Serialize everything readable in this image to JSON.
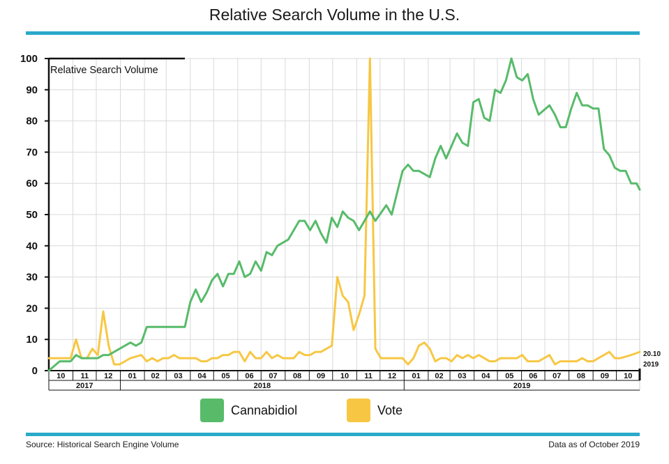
{
  "header": {
    "title": "Relative Search Volume in the U.S."
  },
  "footer": {
    "source": "Source: Historical Search Engine Volume",
    "note": "Data as of October 2019"
  },
  "colors": {
    "rule": "#2aa9c9",
    "cannabidiol": "#57bb6a",
    "vote": "#f7c744",
    "grid": "#d9d9d9"
  },
  "chart_data": {
    "type": "line",
    "ylabel": "Relative Search Volume",
    "ylim": [
      0,
      100
    ],
    "yticks": [
      0,
      10,
      20,
      30,
      40,
      50,
      60,
      70,
      80,
      90,
      100
    ],
    "x_start": "2017-10-01",
    "x_end": "2019-10-31",
    "months": [
      {
        "label": "10",
        "date": "2017-10-01"
      },
      {
        "label": "11",
        "date": "2017-11-01"
      },
      {
        "label": "12",
        "date": "2017-12-01"
      },
      {
        "label": "01",
        "date": "2018-01-01"
      },
      {
        "label": "02",
        "date": "2018-02-01"
      },
      {
        "label": "03",
        "date": "2018-03-01"
      },
      {
        "label": "04",
        "date": "2018-04-01"
      },
      {
        "label": "05",
        "date": "2018-05-01"
      },
      {
        "label": "06",
        "date": "2018-06-01"
      },
      {
        "label": "07",
        "date": "2018-07-01"
      },
      {
        "label": "08",
        "date": "2018-08-01"
      },
      {
        "label": "09",
        "date": "2018-09-01"
      },
      {
        "label": "10",
        "date": "2018-10-01"
      },
      {
        "label": "11",
        "date": "2018-11-01"
      },
      {
        "label": "12",
        "date": "2018-12-01"
      },
      {
        "label": "01",
        "date": "2019-01-01"
      },
      {
        "label": "02",
        "date": "2019-02-01"
      },
      {
        "label": "03",
        "date": "2019-03-01"
      },
      {
        "label": "04",
        "date": "2019-04-01"
      },
      {
        "label": "05",
        "date": "2019-05-01"
      },
      {
        "label": "06",
        "date": "2019-06-01"
      },
      {
        "label": "07",
        "date": "2019-07-01"
      },
      {
        "label": "08",
        "date": "2019-08-01"
      },
      {
        "label": "09",
        "date": "2019-09-01"
      },
      {
        "label": "10",
        "date": "2019-10-01"
      }
    ],
    "years": [
      {
        "label": "2017",
        "start": "2017-10-01",
        "end": "2017-12-31"
      },
      {
        "label": "2018",
        "start": "2018-01-01",
        "end": "2018-12-31"
      },
      {
        "label": "2019",
        "start": "2019-01-01",
        "end": "2019-10-31"
      }
    ],
    "end_label": [
      "20.10",
      "2019"
    ],
    "legend": {
      "placement": "bottom"
    },
    "series": [
      {
        "name": "Cannabidiol",
        "color": "#57bb6a",
        "points": [
          [
            "2017-10-01",
            0
          ],
          [
            "2017-10-15",
            3
          ],
          [
            "2017-10-29",
            3
          ],
          [
            "2017-11-05",
            5
          ],
          [
            "2017-11-12",
            4
          ],
          [
            "2017-11-19",
            4
          ],
          [
            "2017-11-26",
            4
          ],
          [
            "2017-12-03",
            4
          ],
          [
            "2017-12-10",
            5
          ],
          [
            "2017-12-17",
            5
          ],
          [
            "2017-12-31",
            7
          ],
          [
            "2018-01-14",
            9
          ],
          [
            "2018-01-21",
            8
          ],
          [
            "2018-01-28",
            9
          ],
          [
            "2018-02-04",
            14
          ],
          [
            "2018-02-11",
            14
          ],
          [
            "2018-02-25",
            14
          ],
          [
            "2018-03-11",
            14
          ],
          [
            "2018-03-25",
            14
          ],
          [
            "2018-04-01",
            22
          ],
          [
            "2018-04-08",
            26
          ],
          [
            "2018-04-15",
            22
          ],
          [
            "2018-04-22",
            25
          ],
          [
            "2018-04-29",
            29
          ],
          [
            "2018-05-06",
            31
          ],
          [
            "2018-05-13",
            27
          ],
          [
            "2018-05-20",
            31
          ],
          [
            "2018-05-27",
            31
          ],
          [
            "2018-06-03",
            35
          ],
          [
            "2018-06-10",
            30
          ],
          [
            "2018-06-17",
            31
          ],
          [
            "2018-06-24",
            35
          ],
          [
            "2018-07-01",
            32
          ],
          [
            "2018-07-08",
            38
          ],
          [
            "2018-07-15",
            37
          ],
          [
            "2018-07-22",
            40
          ],
          [
            "2018-08-05",
            42
          ],
          [
            "2018-08-19",
            48
          ],
          [
            "2018-08-26",
            48
          ],
          [
            "2018-09-02",
            45
          ],
          [
            "2018-09-09",
            48
          ],
          [
            "2018-09-16",
            44
          ],
          [
            "2018-09-23",
            41
          ],
          [
            "2018-09-30",
            49
          ],
          [
            "2018-10-07",
            46
          ],
          [
            "2018-10-14",
            51
          ],
          [
            "2018-10-21",
            49
          ],
          [
            "2018-10-28",
            48
          ],
          [
            "2018-11-04",
            45
          ],
          [
            "2018-11-11",
            48
          ],
          [
            "2018-11-18",
            51
          ],
          [
            "2018-11-25",
            48
          ],
          [
            "2018-12-09",
            53
          ],
          [
            "2018-12-16",
            50
          ],
          [
            "2018-12-23",
            57
          ],
          [
            "2018-12-30",
            64
          ],
          [
            "2019-01-06",
            66
          ],
          [
            "2019-01-13",
            64
          ],
          [
            "2019-01-20",
            64
          ],
          [
            "2019-02-03",
            62
          ],
          [
            "2019-02-10",
            68
          ],
          [
            "2019-02-17",
            72
          ],
          [
            "2019-02-24",
            68
          ],
          [
            "2019-03-10",
            76
          ],
          [
            "2019-03-17",
            73
          ],
          [
            "2019-03-24",
            72
          ],
          [
            "2019-03-31",
            86
          ],
          [
            "2019-04-07",
            87
          ],
          [
            "2019-04-14",
            81
          ],
          [
            "2019-04-21",
            80
          ],
          [
            "2019-04-28",
            90
          ],
          [
            "2019-05-05",
            89
          ],
          [
            "2019-05-12",
            93
          ],
          [
            "2019-05-19",
            100
          ],
          [
            "2019-05-26",
            94
          ],
          [
            "2019-06-02",
            93
          ],
          [
            "2019-06-09",
            95
          ],
          [
            "2019-06-16",
            87
          ],
          [
            "2019-06-23",
            82
          ],
          [
            "2019-07-07",
            85
          ],
          [
            "2019-07-14",
            82
          ],
          [
            "2019-07-21",
            78
          ],
          [
            "2019-07-28",
            78
          ],
          [
            "2019-08-04",
            84
          ],
          [
            "2019-08-11",
            89
          ],
          [
            "2019-08-18",
            85
          ],
          [
            "2019-08-25",
            85
          ],
          [
            "2019-09-01",
            84
          ],
          [
            "2019-09-08",
            84
          ],
          [
            "2019-09-15",
            71
          ],
          [
            "2019-09-22",
            69
          ],
          [
            "2019-09-29",
            65
          ],
          [
            "2019-10-06",
            64
          ],
          [
            "2019-10-13",
            64
          ],
          [
            "2019-10-20",
            60
          ],
          [
            "2019-10-27",
            60
          ],
          [
            "2019-10-31",
            58
          ]
        ]
      },
      {
        "name": "Vote",
        "color": "#f7c744",
        "points": [
          [
            "2017-10-01",
            4
          ],
          [
            "2017-10-15",
            4
          ],
          [
            "2017-10-29",
            4
          ],
          [
            "2017-11-05",
            10
          ],
          [
            "2017-11-12",
            4
          ],
          [
            "2017-11-19",
            4
          ],
          [
            "2017-11-26",
            7
          ],
          [
            "2017-12-03",
            5
          ],
          [
            "2017-12-10",
            19
          ],
          [
            "2017-12-17",
            8
          ],
          [
            "2017-12-24",
            2
          ],
          [
            "2017-12-31",
            2
          ],
          [
            "2018-01-14",
            4
          ],
          [
            "2018-01-28",
            5
          ],
          [
            "2018-02-04",
            3
          ],
          [
            "2018-02-11",
            4
          ],
          [
            "2018-02-18",
            3
          ],
          [
            "2018-02-25",
            4
          ],
          [
            "2018-03-04",
            4
          ],
          [
            "2018-03-11",
            5
          ],
          [
            "2018-03-18",
            4
          ],
          [
            "2018-03-25",
            4
          ],
          [
            "2018-04-08",
            4
          ],
          [
            "2018-04-15",
            3
          ],
          [
            "2018-04-22",
            3
          ],
          [
            "2018-04-29",
            4
          ],
          [
            "2018-05-06",
            4
          ],
          [
            "2018-05-13",
            5
          ],
          [
            "2018-05-20",
            5
          ],
          [
            "2018-05-27",
            6
          ],
          [
            "2018-06-03",
            6
          ],
          [
            "2018-06-10",
            3
          ],
          [
            "2018-06-17",
            6
          ],
          [
            "2018-06-24",
            4
          ],
          [
            "2018-07-01",
            4
          ],
          [
            "2018-07-08",
            6
          ],
          [
            "2018-07-15",
            4
          ],
          [
            "2018-07-22",
            5
          ],
          [
            "2018-07-29",
            4
          ],
          [
            "2018-08-12",
            4
          ],
          [
            "2018-08-19",
            6
          ],
          [
            "2018-08-26",
            5
          ],
          [
            "2018-09-02",
            5
          ],
          [
            "2018-09-09",
            6
          ],
          [
            "2018-09-16",
            6
          ],
          [
            "2018-09-23",
            7
          ],
          [
            "2018-09-30",
            8
          ],
          [
            "2018-10-07",
            30
          ],
          [
            "2018-10-14",
            24
          ],
          [
            "2018-10-21",
            22
          ],
          [
            "2018-10-28",
            13
          ],
          [
            "2018-11-04",
            18
          ],
          [
            "2018-11-11",
            24
          ],
          [
            "2018-11-18",
            100
          ],
          [
            "2018-11-25",
            7
          ],
          [
            "2018-12-02",
            4
          ],
          [
            "2018-12-16",
            4
          ],
          [
            "2018-12-30",
            4
          ],
          [
            "2019-01-06",
            2
          ],
          [
            "2019-01-13",
            4
          ],
          [
            "2019-01-20",
            8
          ],
          [
            "2019-01-27",
            9
          ],
          [
            "2019-02-03",
            7
          ],
          [
            "2019-02-10",
            3
          ],
          [
            "2019-02-17",
            4
          ],
          [
            "2019-02-24",
            4
          ],
          [
            "2019-03-03",
            3
          ],
          [
            "2019-03-10",
            5
          ],
          [
            "2019-03-17",
            4
          ],
          [
            "2019-03-24",
            5
          ],
          [
            "2019-03-31",
            4
          ],
          [
            "2019-04-07",
            5
          ],
          [
            "2019-04-14",
            4
          ],
          [
            "2019-04-21",
            3
          ],
          [
            "2019-04-28",
            3
          ],
          [
            "2019-05-05",
            4
          ],
          [
            "2019-05-19",
            4
          ],
          [
            "2019-05-26",
            4
          ],
          [
            "2019-06-02",
            5
          ],
          [
            "2019-06-09",
            3
          ],
          [
            "2019-06-23",
            3
          ],
          [
            "2019-06-30",
            4
          ],
          [
            "2019-07-07",
            5
          ],
          [
            "2019-07-14",
            2
          ],
          [
            "2019-07-21",
            3
          ],
          [
            "2019-08-11",
            3
          ],
          [
            "2019-08-18",
            4
          ],
          [
            "2019-08-25",
            3
          ],
          [
            "2019-09-01",
            3
          ],
          [
            "2019-09-08",
            4
          ],
          [
            "2019-09-22",
            6
          ],
          [
            "2019-09-29",
            4
          ],
          [
            "2019-10-06",
            4
          ],
          [
            "2019-10-20",
            5
          ],
          [
            "2019-10-31",
            6
          ]
        ]
      }
    ]
  }
}
